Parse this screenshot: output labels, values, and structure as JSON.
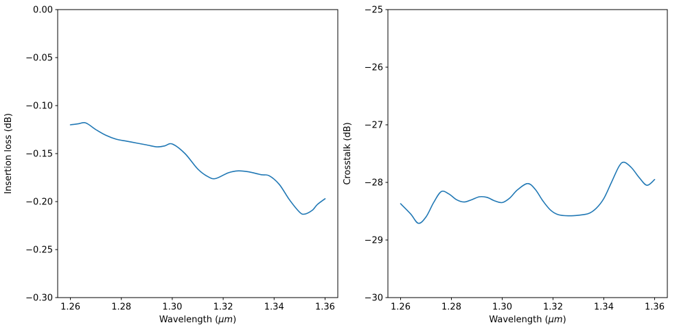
{
  "figure": {
    "background": "#ffffff"
  },
  "chart_data": [
    {
      "type": "line",
      "title": "",
      "xlabel": "Wavelength (μm)",
      "ylabel": "Insertion loss (dB)",
      "xlim": [
        1.255,
        1.365
      ],
      "ylim": [
        -0.3,
        0.0
      ],
      "grid": false,
      "legend": "none",
      "line_color": "#1f77b4",
      "xticks": [
        {
          "value": 1.26,
          "label": "1.26"
        },
        {
          "value": 1.28,
          "label": "1.28"
        },
        {
          "value": 1.3,
          "label": "1.30"
        },
        {
          "value": 1.32,
          "label": "1.32"
        },
        {
          "value": 1.34,
          "label": "1.34"
        },
        {
          "value": 1.36,
          "label": "1.36"
        }
      ],
      "yticks": [
        {
          "value": 0.0,
          "label": "0.00"
        },
        {
          "value": -0.05,
          "label": "−0.05"
        },
        {
          "value": -0.1,
          "label": "−0.10"
        },
        {
          "value": -0.15,
          "label": "−0.15"
        },
        {
          "value": -0.2,
          "label": "−0.20"
        },
        {
          "value": -0.25,
          "label": "−0.25"
        },
        {
          "value": -0.3,
          "label": "−0.30"
        }
      ],
      "x": [
        1.26,
        1.263,
        1.266,
        1.27,
        1.274,
        1.278,
        1.282,
        1.286,
        1.29,
        1.294,
        1.297,
        1.3,
        1.305,
        1.31,
        1.314,
        1.317,
        1.322,
        1.326,
        1.33,
        1.335,
        1.338,
        1.342,
        1.346,
        1.35,
        1.352,
        1.355,
        1.357,
        1.36
      ],
      "y": [
        -0.12,
        -0.119,
        -0.118,
        -0.125,
        -0.131,
        -0.135,
        -0.137,
        -0.139,
        -0.141,
        -0.143,
        -0.142,
        -0.14,
        -0.15,
        -0.166,
        -0.174,
        -0.176,
        -0.17,
        -0.168,
        -0.169,
        -0.172,
        -0.173,
        -0.182,
        -0.198,
        -0.211,
        -0.213,
        -0.209,
        -0.203,
        -0.197
      ]
    },
    {
      "type": "line",
      "title": "",
      "xlabel": "Wavelength (μm)",
      "ylabel": "Crosstalk (dB)",
      "xlim": [
        1.255,
        1.365
      ],
      "ylim": [
        -30,
        -25
      ],
      "grid": false,
      "legend": "none",
      "line_color": "#1f77b4",
      "xticks": [
        {
          "value": 1.26,
          "label": "1.26"
        },
        {
          "value": 1.28,
          "label": "1.28"
        },
        {
          "value": 1.3,
          "label": "1.30"
        },
        {
          "value": 1.32,
          "label": "1.32"
        },
        {
          "value": 1.34,
          "label": "1.34"
        },
        {
          "value": 1.36,
          "label": "1.36"
        }
      ],
      "yticks": [
        {
          "value": -25,
          "label": "−25"
        },
        {
          "value": -26,
          "label": "−26"
        },
        {
          "value": -27,
          "label": "−27"
        },
        {
          "value": -28,
          "label": "−28"
        },
        {
          "value": -29,
          "label": "−29"
        },
        {
          "value": -30,
          "label": "−30"
        }
      ],
      "x": [
        1.26,
        1.264,
        1.267,
        1.27,
        1.273,
        1.276,
        1.279,
        1.282,
        1.285,
        1.288,
        1.291,
        1.294,
        1.297,
        1.3,
        1.303,
        1.306,
        1.31,
        1.313,
        1.316,
        1.319,
        1.322,
        1.326,
        1.33,
        1.334,
        1.337,
        1.34,
        1.343,
        1.346,
        1.348,
        1.351,
        1.354,
        1.357,
        1.36
      ],
      "y": [
        -28.37,
        -28.55,
        -28.71,
        -28.6,
        -28.35,
        -28.16,
        -28.2,
        -28.3,
        -28.34,
        -28.3,
        -28.25,
        -28.26,
        -28.32,
        -28.35,
        -28.27,
        -28.13,
        -28.02,
        -28.12,
        -28.32,
        -28.48,
        -28.56,
        -28.58,
        -28.57,
        -28.54,
        -28.45,
        -28.28,
        -28.0,
        -27.72,
        -27.65,
        -27.75,
        -27.92,
        -28.05,
        -27.95
      ]
    }
  ]
}
